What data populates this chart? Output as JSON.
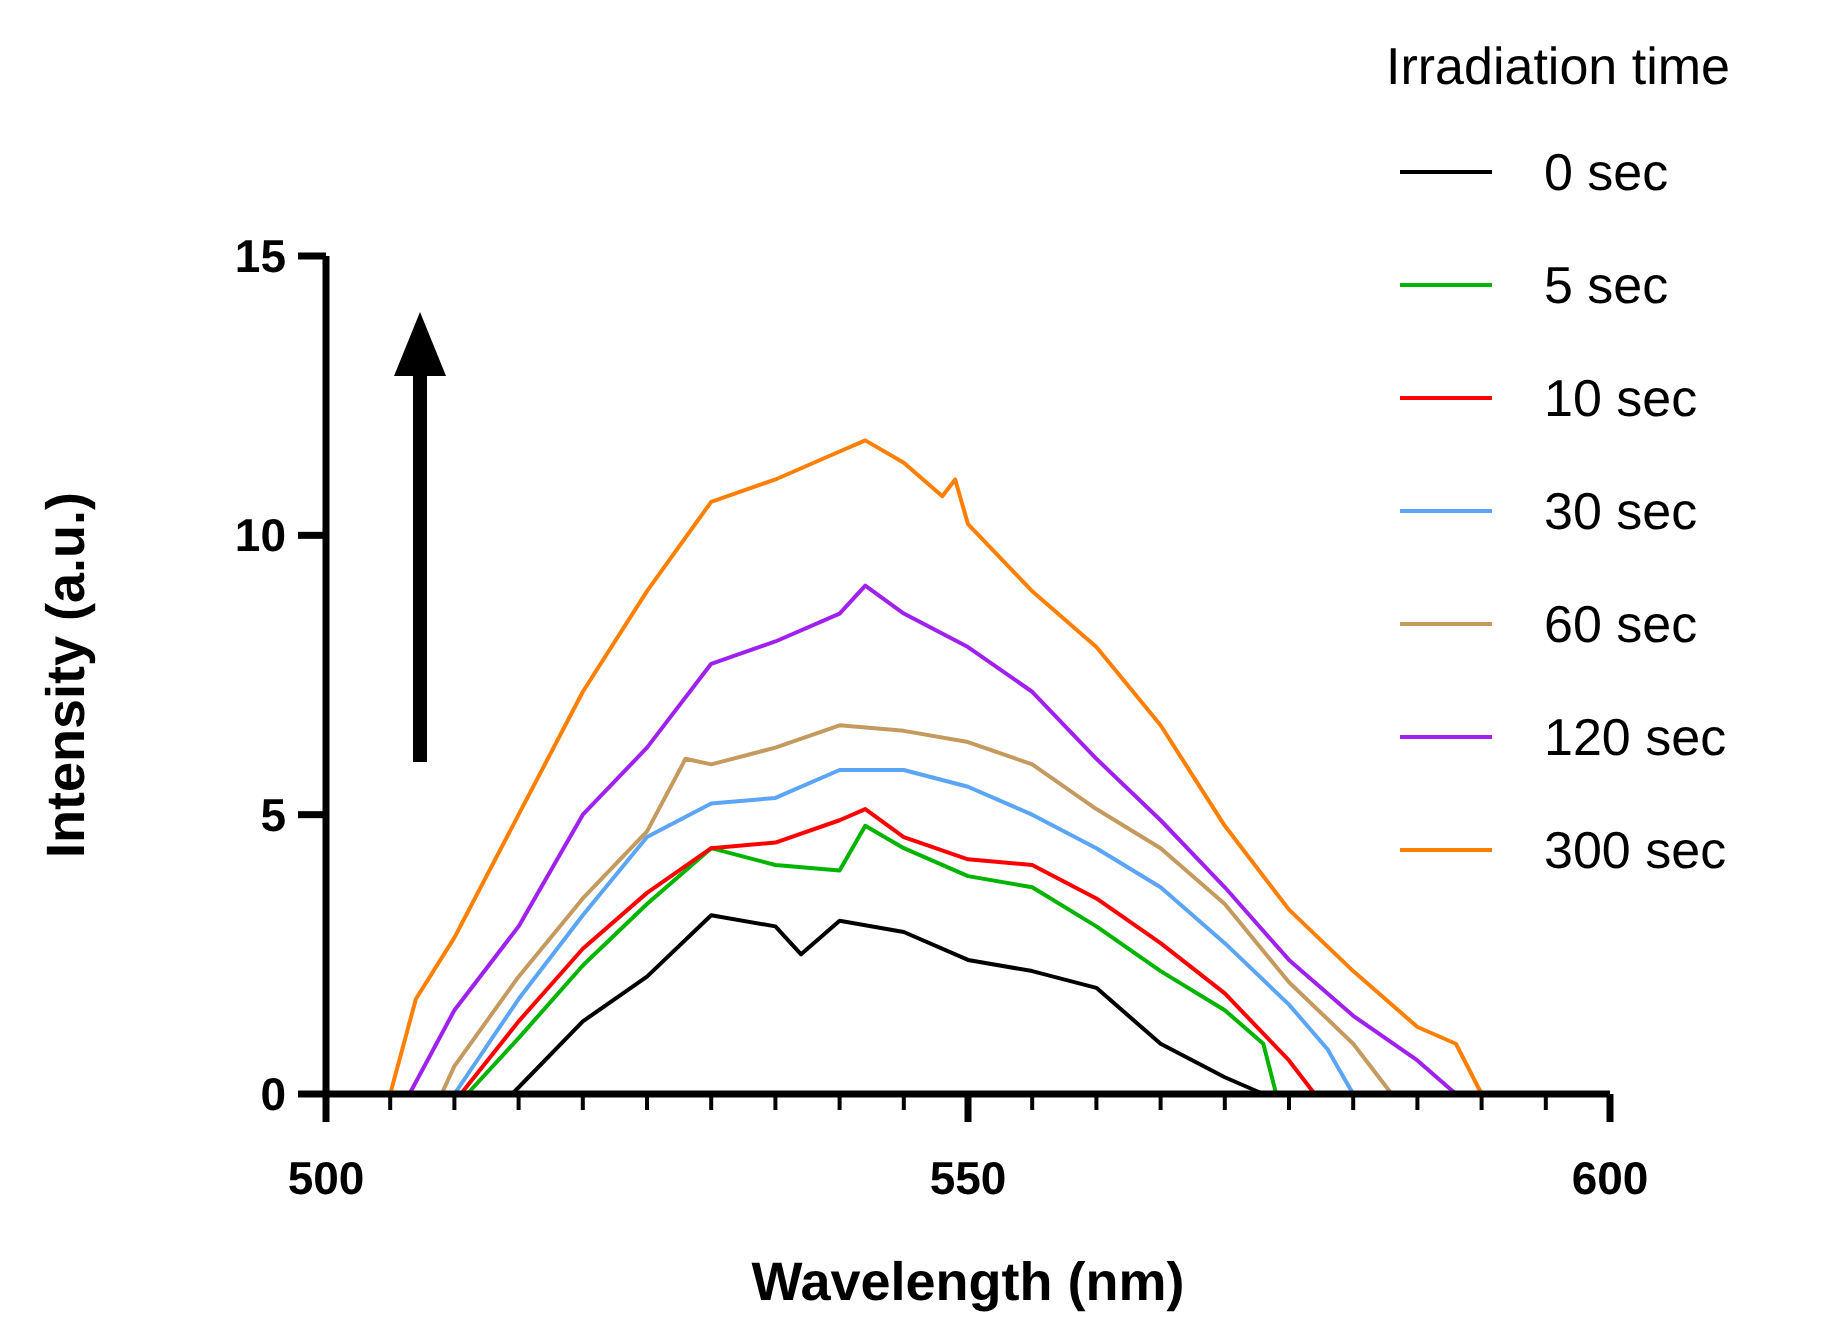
{
  "chart_data": {
    "type": "line",
    "xlabel": "Wavelength (nm)",
    "ylabel": "Intensity (a.u.)",
    "legend_title": "Irradiation time",
    "legend": "right",
    "grid": false,
    "marker": "none",
    "line_style": "solid",
    "xlim": [
      500,
      600
    ],
    "xticks": [
      500,
      {
        "value": 505,
        "label": null
      },
      {
        "value": 510,
        "label": null
      },
      {
        "value": 515,
        "label": null
      },
      {
        "value": 520,
        "label": null
      },
      {
        "value": 525,
        "label": null
      },
      {
        "value": 530,
        "label": null
      },
      {
        "value": 535,
        "label": null
      },
      {
        "value": 540,
        "label": null
      },
      {
        "value": 545,
        "label": null
      },
      550,
      {
        "value": 555,
        "label": null
      },
      {
        "value": 560,
        "label": null
      },
      {
        "value": 565,
        "label": null
      },
      {
        "value": 570,
        "label": null
      },
      {
        "value": 575,
        "label": null
      },
      {
        "value": 580,
        "label": null
      },
      {
        "value": 585,
        "label": null
      },
      {
        "value": 590,
        "label": null
      },
      {
        "value": 595,
        "label": null
      },
      600
    ],
    "ylim": [
      0,
      15
    ],
    "yticks": [
      0,
      5,
      10,
      15
    ],
    "series": [
      {
        "name": "0 sec",
        "color": "#000000",
        "x": [
          514.5,
          520,
          525,
          530,
          535,
          537,
          540,
          545,
          550,
          555,
          560,
          565,
          570,
          573
        ],
        "values": [
          0,
          1.3,
          2.1,
          3.2,
          3.0,
          2.5,
          3.1,
          2.9,
          2.4,
          2.2,
          1.9,
          0.9,
          0.3,
          0
        ]
      },
      {
        "name": "5 sec",
        "color": "#00b400",
        "x": [
          511,
          515,
          520,
          525,
          530,
          535,
          540,
          542,
          545,
          550,
          555,
          560,
          565,
          570,
          573,
          574
        ],
        "values": [
          0,
          1.0,
          2.3,
          3.4,
          4.4,
          4.1,
          4.0,
          4.8,
          4.4,
          3.9,
          3.7,
          3.0,
          2.2,
          1.5,
          0.9,
          0
        ]
      },
      {
        "name": "10 sec",
        "color": "#ff0000",
        "x": [
          510.5,
          515,
          520,
          525,
          530,
          535,
          540,
          542,
          545,
          550,
          555,
          560,
          565,
          570,
          575,
          577
        ],
        "values": [
          0,
          1.3,
          2.6,
          3.6,
          4.4,
          4.5,
          4.9,
          5.1,
          4.6,
          4.2,
          4.1,
          3.5,
          2.7,
          1.8,
          0.6,
          0
        ]
      },
      {
        "name": "30 sec",
        "color": "#5aa5f5",
        "x": [
          510,
          515,
          520,
          525,
          530,
          535,
          540,
          545,
          550,
          555,
          560,
          565,
          570,
          575,
          578,
          580
        ],
        "values": [
          0,
          1.7,
          3.2,
          4.6,
          5.2,
          5.3,
          5.8,
          5.8,
          5.5,
          5.0,
          4.4,
          3.7,
          2.7,
          1.6,
          0.8,
          0
        ]
      },
      {
        "name": "60 sec",
        "color": "#c49a5e",
        "x": [
          509,
          510,
          515,
          520,
          525,
          528,
          530,
          535,
          540,
          545,
          550,
          555,
          560,
          565,
          570,
          575,
          580,
          583
        ],
        "values": [
          0,
          0.5,
          2.1,
          3.5,
          4.7,
          6.0,
          5.9,
          6.2,
          6.6,
          6.5,
          6.3,
          5.9,
          5.1,
          4.4,
          3.4,
          2.0,
          0.9,
          0
        ]
      },
      {
        "name": "120 sec",
        "color": "#a020f0",
        "x": [
          506.5,
          510,
          515,
          520,
          525,
          530,
          535,
          540,
          542,
          545,
          550,
          555,
          560,
          565,
          570,
          575,
          580,
          585,
          588
        ],
        "values": [
          0,
          1.5,
          3.0,
          5.0,
          6.2,
          7.7,
          8.1,
          8.6,
          9.1,
          8.6,
          8.0,
          7.2,
          6.0,
          4.9,
          3.7,
          2.4,
          1.4,
          0.6,
          0
        ]
      },
      {
        "name": "300 sec",
        "color": "#ff8000",
        "x": [
          505,
          507,
          510,
          515,
          520,
          525,
          530,
          535,
          540,
          542,
          545,
          548,
          549,
          550,
          555,
          560,
          565,
          570,
          575,
          580,
          585,
          588,
          590
        ],
        "values": [
          0,
          1.7,
          2.8,
          5.0,
          7.2,
          9.0,
          10.6,
          11.0,
          11.5,
          11.7,
          11.3,
          10.7,
          11.0,
          10.2,
          9.0,
          8.0,
          6.6,
          4.8,
          3.3,
          2.2,
          1.2,
          0.9,
          0
        ]
      }
    ]
  }
}
